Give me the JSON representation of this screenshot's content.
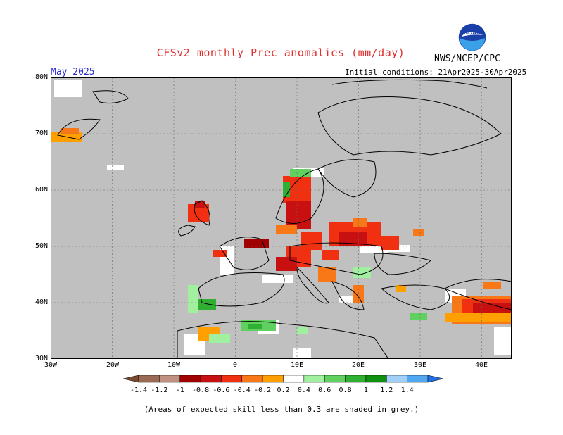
{
  "header": {
    "title": "CFSv2 monthly Prec anomalies (mm/day)",
    "org": "NWS/NCEP/CPC",
    "logo_text": "NOAA",
    "month": "May 2025",
    "initial_conditions": "Initial conditions: 21Apr2025-30Apr2025"
  },
  "map": {
    "lat_labels": [
      "80N",
      "70N",
      "60N",
      "50N",
      "40N",
      "30N"
    ],
    "lon_labels": [
      "30W",
      "20W",
      "10W",
      "0",
      "10E",
      "20E",
      "30E",
      "40E"
    ],
    "no_skill_color": "#c0c0c0",
    "land_outline_color": "#000000"
  },
  "colorbar": {
    "colors": [
      "#7a4a32",
      "#9a6a55",
      "#c09080",
      "#a00000",
      "#c81010",
      "#f03010",
      "#f87818",
      "#ffa000",
      "#ffffff",
      "#a0f0a0",
      "#60d060",
      "#30b030",
      "#109010",
      "#a0d0f8",
      "#50a8f0",
      "#2070e0"
    ],
    "labels": [
      "-1.4",
      "-1.2",
      "-1",
      "-0.8",
      "-0.6",
      "-0.4",
      "-0.2",
      "0.2",
      "0.4",
      "0.6",
      "0.8",
      "1",
      "1.2",
      "1.4"
    ]
  },
  "footnote": "(Areas of expected skill less than 0.3 are shaded in grey.)"
}
